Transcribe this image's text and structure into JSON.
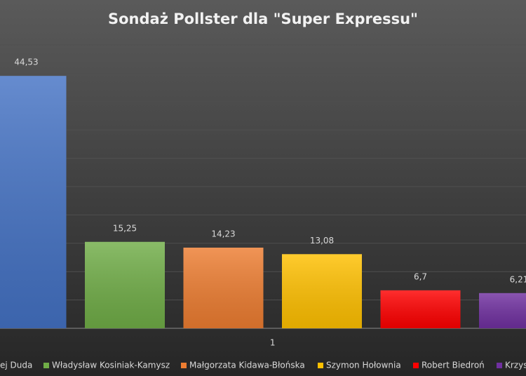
{
  "chart_data": {
    "type": "bar",
    "title": "Sondaż Pollster dla \"Super Expressu\"",
    "categories": [
      "1"
    ],
    "series": [
      {
        "name": "ej Duda",
        "color": "#4472c4",
        "values": [
          44.53
        ],
        "value_labels": [
          "44,53"
        ]
      },
      {
        "name": "Władysław Kosiniak-Kamysz",
        "color": "#70ad47",
        "values": [
          15.25
        ],
        "value_labels": [
          "15,25"
        ]
      },
      {
        "name": "Małgorzata Kidawa-Błońska",
        "color": "#ed7d31",
        "values": [
          14.23
        ],
        "value_labels": [
          "14,23"
        ]
      },
      {
        "name": "Szymon Hołownia",
        "color": "#ffc000",
        "values": [
          13.08
        ],
        "value_labels": [
          "13,08"
        ]
      },
      {
        "name": "Robert Biedroń",
        "color": "#ff0000",
        "values": [
          6.7
        ],
        "value_labels": [
          "6,7"
        ]
      },
      {
        "name": "Krzys",
        "color": "#7030a0",
        "values": [
          6.21
        ],
        "value_labels": [
          "6,21"
        ]
      }
    ],
    "ylim": [
      0,
      50
    ],
    "yticks": [
      0,
      5,
      10,
      15,
      20,
      25,
      30,
      35,
      40,
      45,
      50
    ],
    "grid": true,
    "legend": "bottom"
  }
}
